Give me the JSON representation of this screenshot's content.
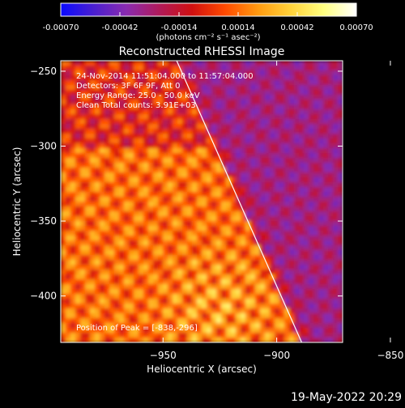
{
  "colorbar": {
    "ticks": [
      "-0.00070",
      "-0.00042",
      "-0.00014",
      "0.00014",
      "0.00042",
      "0.00070"
    ],
    "unit_label": "(photons cm⁻² s⁻¹ asec⁻²)",
    "stops": [
      "#0a0aff",
      "#4a1fd0",
      "#8a2bb0",
      "#b01a5a",
      "#d01010",
      "#ff4a00",
      "#ff9a10",
      "#ffd23a",
      "#ffff80",
      "#ffffff"
    ],
    "range": [
      -0.0007,
      0.0007
    ]
  },
  "annotations": {
    "date_range": "24-Nov-2014 11:51:04.000 to 11:57:04.000",
    "detectors": "Detectors: 3F 6F 9F, Att 0",
    "energy": "Energy Range: 25.0 - 50.0 keV",
    "clean": "Clean     Total counts: 3.91E+03",
    "peak": "Position of Peak = [-838,-296]"
  },
  "footer_date": "19-May-2022 20:29",
  "chart_data": {
    "type": "heatmap",
    "title": "Reconstructed RHESSI Image",
    "xlabel": "Heliocentric X (arcsec)",
    "ylabel": "Heliocentric Y (arcsec)",
    "xlim": [
      -995,
      -871
    ],
    "ylim": [
      -431,
      -243
    ],
    "x_ticks": [
      -950,
      -900,
      -850
    ],
    "y_ticks": [
      -250,
      -300,
      -350,
      -400
    ],
    "x_tick_labels": [
      "−950",
      "−900",
      "−850"
    ],
    "y_tick_labels": [
      "−250",
      "−300",
      "−350",
      "−400"
    ],
    "peak": [
      -838,
      -296
    ],
    "limb_line": [
      [
        -944,
        -243
      ],
      [
        -889,
        -431
      ]
    ],
    "colors": {
      "axis": "#ffffff",
      "limb": "#ffffff",
      "background": "#000000"
    }
  }
}
